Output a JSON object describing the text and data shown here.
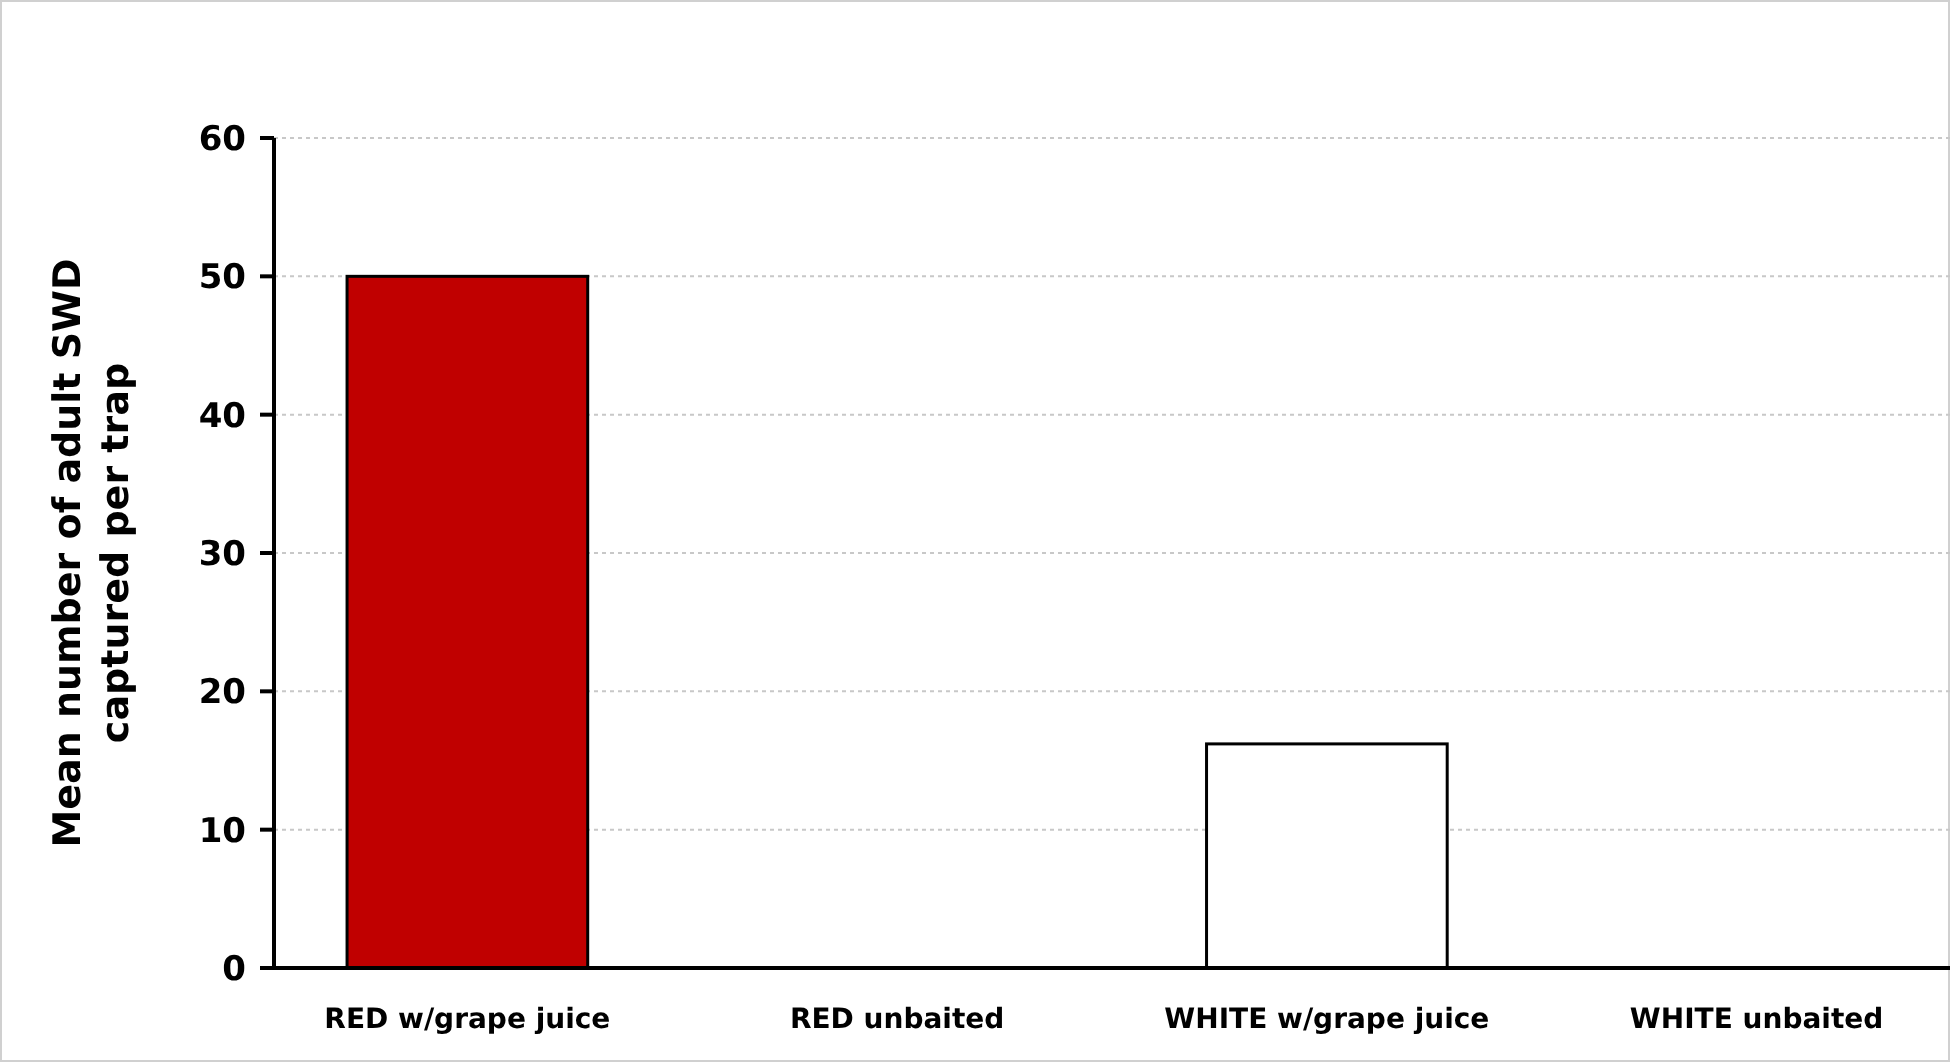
{
  "chart_data": {
    "type": "bar",
    "ylabel": "Mean number of adult SWD\ncaptured per trap",
    "categories": [
      "RED w/grape juice",
      "RED unbaited",
      "WHITE w/grape juice",
      "WHITE unbaited"
    ],
    "values": [
      50,
      0,
      16.2,
      0
    ],
    "colors": [
      "#c00000",
      "#ffffff",
      "#ffffff",
      "#ffffff"
    ],
    "ylim": [
      0,
      60
    ],
    "yticks": [
      0,
      10,
      20,
      30,
      40,
      50,
      60
    ],
    "grid": "y"
  }
}
